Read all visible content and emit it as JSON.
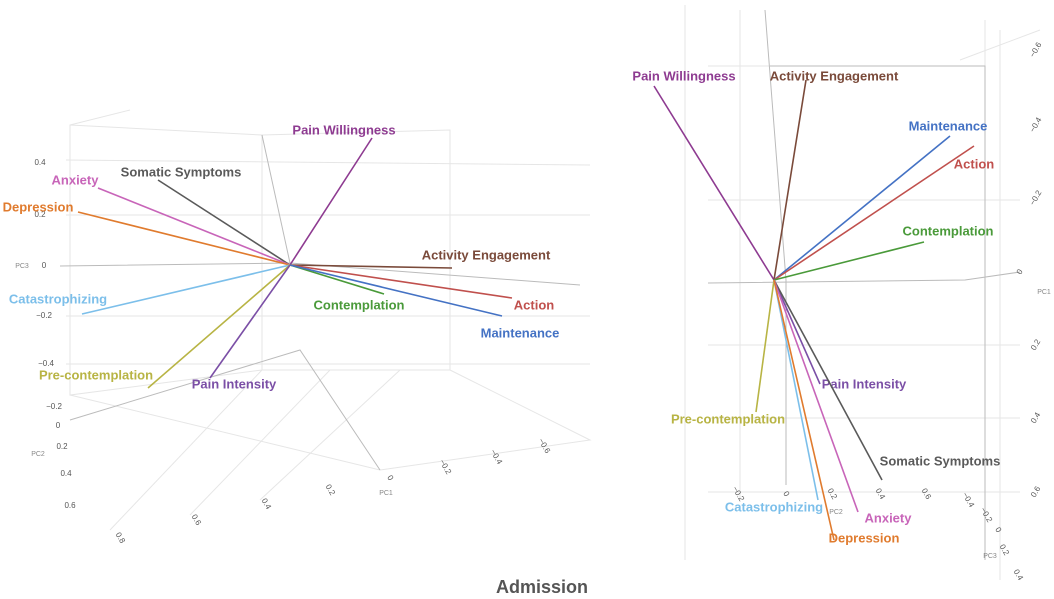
{
  "caption": "Admission",
  "panels": [
    {
      "vectors": [
        {
          "label": "Pain Willingness",
          "color": "#8e3b91"
        },
        {
          "label": "Somatic Symptoms",
          "color": "#5a5a5a"
        },
        {
          "label": "Anxiety",
          "color": "#c865b9"
        },
        {
          "label": "Depression",
          "color": "#e07b2e"
        },
        {
          "label": "Activity Engagement",
          "color": "#7a4a3a"
        },
        {
          "label": "Action",
          "color": "#c0504d"
        },
        {
          "label": "Contemplation",
          "color": "#4a9a3a"
        },
        {
          "label": "Maintenance",
          "color": "#4472c4"
        },
        {
          "label": "Catastrophizing",
          "color": "#7cbfea"
        },
        {
          "label": "Pre-contemplation",
          "color": "#b8b444"
        },
        {
          "label": "Pain Intensity",
          "color": "#7b4fa6"
        }
      ],
      "axes": [
        {
          "title": "PC3",
          "ticks": [
            "0.4",
            "0.2",
            "0",
            "−0.2",
            "−0.4"
          ]
        },
        {
          "title": "PC2",
          "ticks": [
            "−0.2",
            "0",
            "0.2",
            "0.4",
            "0.6"
          ]
        },
        {
          "title": "PC1",
          "ticks": [
            "0.8",
            "0.6",
            "0.4",
            "0.2",
            "0",
            "−0.2",
            "−0.4",
            "−0.6"
          ]
        }
      ]
    },
    {
      "vectors": [
        {
          "label": "Pain Willingness",
          "color": "#8e3b91"
        },
        {
          "label": "Activity Engagement",
          "color": "#7a4a3a"
        },
        {
          "label": "Maintenance",
          "color": "#4472c4"
        },
        {
          "label": "Action",
          "color": "#c0504d"
        },
        {
          "label": "Contemplation",
          "color": "#4a9a3a"
        },
        {
          "label": "Pain Intensity",
          "color": "#7b4fa6"
        },
        {
          "label": "Pre-contemplation",
          "color": "#b8b444"
        },
        {
          "label": "Somatic Symptoms",
          "color": "#5a5a5a"
        },
        {
          "label": "Catastrophizing",
          "color": "#7cbfea"
        },
        {
          "label": "Anxiety",
          "color": "#c865b9"
        },
        {
          "label": "Depression",
          "color": "#e07b2e"
        }
      ],
      "axes": [
        {
          "title": "PC1",
          "ticks": [
            "−0.6",
            "−0.4",
            "−0.2",
            "0",
            "0.2",
            "0.4",
            "0.6"
          ]
        },
        {
          "title": "PC2",
          "ticks": [
            "−0.2",
            "0",
            "0.2",
            "0.4",
            "0.6"
          ]
        },
        {
          "title": "PC3",
          "ticks": [
            "−0.4",
            "−0.2",
            "0",
            "0.2",
            "0.4"
          ]
        }
      ]
    }
  ]
}
